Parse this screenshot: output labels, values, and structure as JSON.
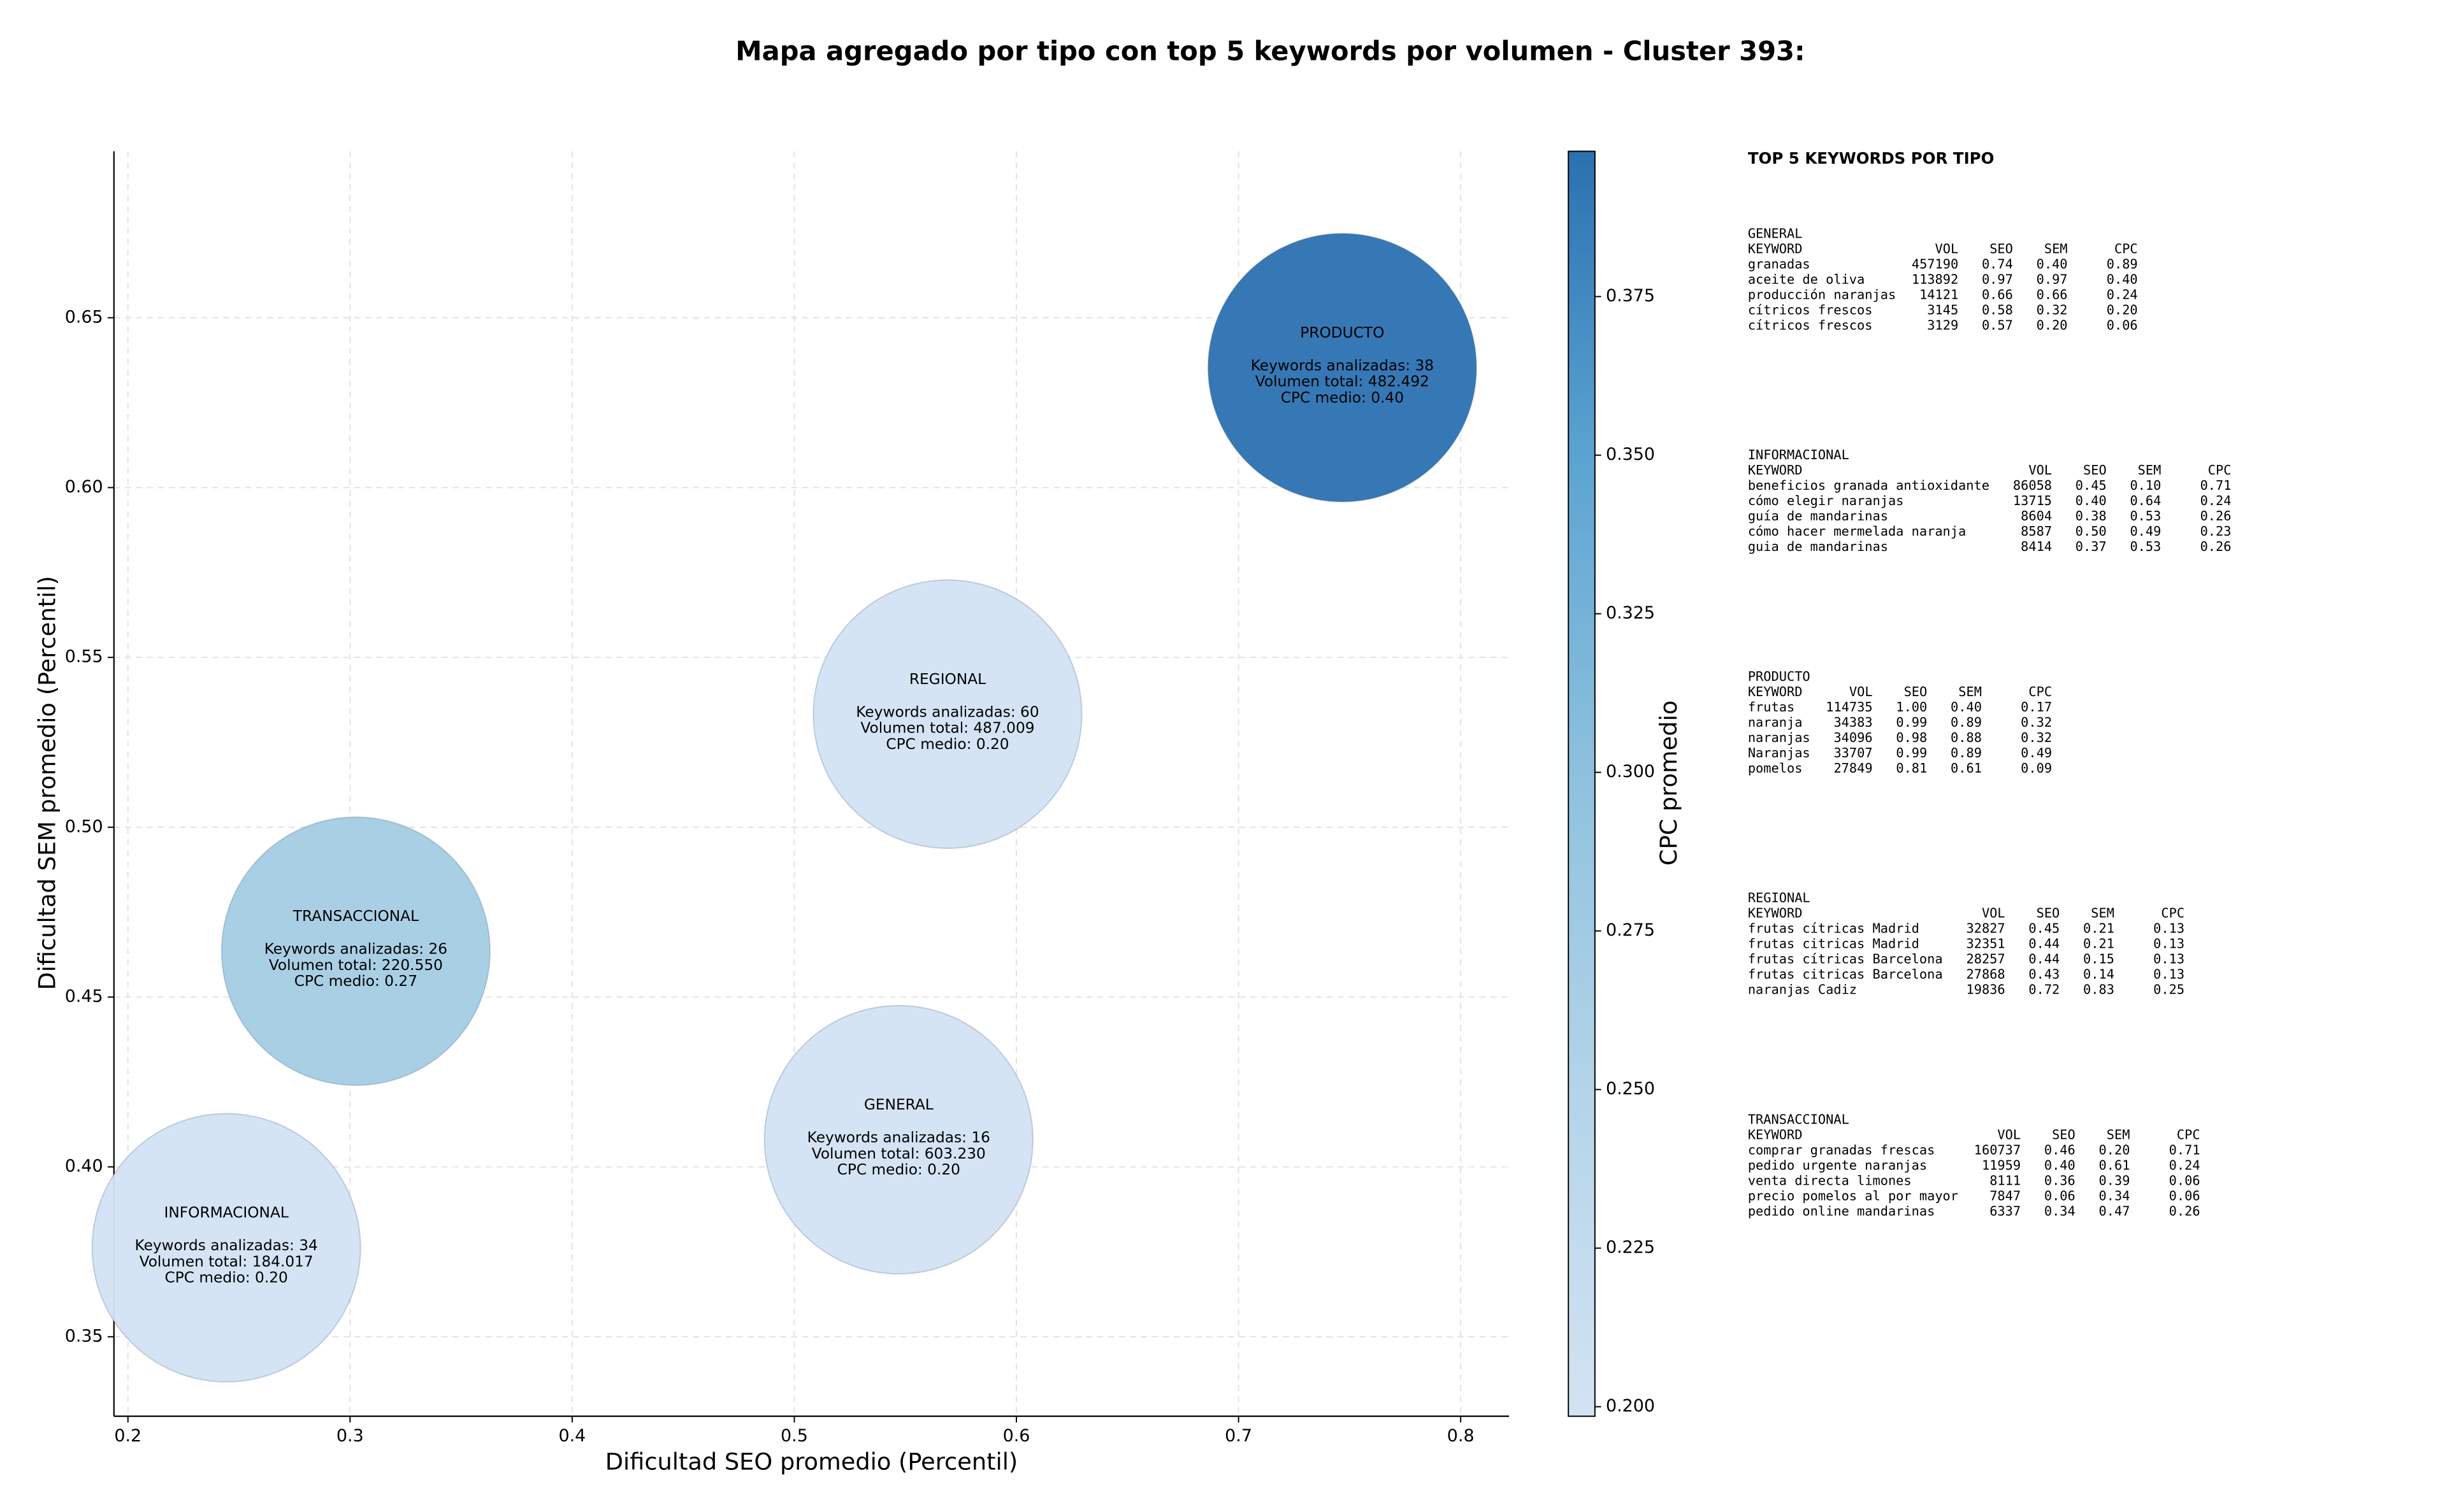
{
  "chart_data": {
    "type": "bubble",
    "title": "Mapa agregado por tipo con top 5 keywords por volumen - Cluster 393:",
    "x_label": "Dificultad SEO promedio (Percentil)",
    "y_label": "Dificultad SEM promedio (Percentil)",
    "xlim": [
      0.1937,
      0.8218
    ],
    "ylim": [
      0.3266,
      0.699
    ],
    "xticks": [
      0.2,
      0.3,
      0.4,
      0.5,
      0.6,
      0.7,
      0.8
    ],
    "yticks": [
      0.35,
      {
        "value": 0.4,
        "label": "0.40"
      },
      0.45,
      {
        "value": 0.5,
        "label": "0.50"
      },
      0.55,
      {
        "value": 0.6,
        "label": "0.60"
      },
      0.65
    ],
    "grid": true,
    "colorbar": {
      "label": "CPC promedio",
      "lim": [
        0.1985,
        0.3979
      ],
      "ticks": [
        {
          "value": 0.2,
          "label": "0.200"
        },
        {
          "value": 0.225,
          "label": "0.225"
        },
        {
          "value": 0.25,
          "label": "0.250"
        },
        {
          "value": 0.275,
          "label": "0.275"
        },
        {
          "value": 0.3,
          "label": "0.300"
        },
        {
          "value": 0.325,
          "label": "0.325"
        },
        {
          "value": 0.35,
          "label": "0.350"
        },
        {
          "value": 0.375,
          "label": "0.375"
        }
      ],
      "colors": [
        "#d3e3f3",
        "#b5d4e9",
        "#8fc2de",
        "#5da5d2",
        "#2b71b1"
      ]
    },
    "points": [
      {
        "name": "PRODUCTO",
        "x": 0.7467,
        "y": 0.6353,
        "cpc": 0.398,
        "labels": [
          "Keywords analizadas: 38",
          "Volumen total: 482.492",
          "CPC medio: 0.40"
        ]
      },
      {
        "name": "REGIONAL",
        "x": 0.569,
        "y": 0.5333,
        "cpc": 0.2,
        "labels": [
          "Keywords analizadas: 60",
          "Volumen total: 487.009",
          "CPC medio: 0.20"
        ]
      },
      {
        "name": "TRANSACCIONAL",
        "x": 0.3026,
        "y": 0.4635,
        "cpc": 0.27,
        "labels": [
          "Keywords analizadas: 26",
          "Volumen total: 220.550",
          "CPC medio: 0.27"
        ]
      },
      {
        "name": "GENERAL",
        "x": 0.547,
        "y": 0.408,
        "cpc": 0.199,
        "labels": [
          "Keywords analizadas: 16",
          "Volumen total: 603.230",
          "CPC medio: 0.20"
        ]
      },
      {
        "name": "INFORMACIONAL",
        "x": 0.2443,
        "y": 0.3762,
        "cpc": 0.2,
        "labels": [
          "Keywords analizadas: 34",
          "Volumen total: 184.017",
          "CPC medio: 0.20"
        ]
      }
    ]
  },
  "keyword_tables": {
    "title": "TOP 5 KEYWORDS POR TIPO",
    "header": [
      "KEYWORD",
      "VOL",
      "SEO",
      "SEM",
      "CPC"
    ],
    "sections": [
      {
        "name": "GENERAL",
        "rows": [
          [
            "granadas",
            "457190",
            "0.74",
            "0.40",
            "0.89"
          ],
          [
            "aceite de oliva",
            "113892",
            "0.97",
            "0.97",
            "0.40"
          ],
          [
            "producción naranjas",
            "14121",
            "0.66",
            "0.66",
            "0.24"
          ],
          [
            "cítricos frescos",
            "3145",
            "0.58",
            "0.32",
            "0.20"
          ],
          [
            "cítricos frescos",
            "3129",
            "0.57",
            "0.20",
            "0.06"
          ]
        ]
      },
      {
        "name": "INFORMACIONAL",
        "rows": [
          [
            "beneficios granada antioxidante",
            "86058",
            "0.45",
            "0.10",
            "0.71"
          ],
          [
            "cómo elegir naranjas",
            "13715",
            "0.40",
            "0.64",
            "0.24"
          ],
          [
            "guía de mandarinas",
            "8604",
            "0.38",
            "0.53",
            "0.26"
          ],
          [
            "cómo hacer mermelada naranja",
            "8587",
            "0.50",
            "0.49",
            "0.23"
          ],
          [
            "guia de mandarinas",
            "8414",
            "0.37",
            "0.53",
            "0.26"
          ]
        ]
      },
      {
        "name": "PRODUCTO",
        "rows": [
          [
            "frutas",
            "114735",
            "1.00",
            "0.40",
            "0.17"
          ],
          [
            "naranja",
            "34383",
            "0.99",
            "0.89",
            "0.32"
          ],
          [
            "naranjas",
            "34096",
            "0.98",
            "0.88",
            "0.32"
          ],
          [
            "Naranjas",
            "33707",
            "0.99",
            "0.89",
            "0.49"
          ],
          [
            "pomelos",
            "27849",
            "0.81",
            "0.61",
            "0.09"
          ]
        ]
      },
      {
        "name": "REGIONAL",
        "rows": [
          [
            "frutas cítricas Madrid",
            "32827",
            "0.45",
            "0.21",
            "0.13"
          ],
          [
            "frutas citricas Madrid",
            "32351",
            "0.44",
            "0.21",
            "0.13"
          ],
          [
            "frutas cítricas Barcelona",
            "28257",
            "0.44",
            "0.15",
            "0.13"
          ],
          [
            "frutas citricas Barcelona",
            "27868",
            "0.43",
            "0.14",
            "0.13"
          ],
          [
            "naranjas Cadiz",
            "19836",
            "0.72",
            "0.83",
            "0.25"
          ]
        ]
      },
      {
        "name": "TRANSACCIONAL",
        "rows": [
          [
            "comprar granadas frescas",
            "160737",
            "0.46",
            "0.20",
            "0.71"
          ],
          [
            "pedido urgente naranjas",
            "11959",
            "0.40",
            "0.61",
            "0.24"
          ],
          [
            "venta directa limones",
            "8111",
            "0.36",
            "0.39",
            "0.06"
          ],
          [
            "precio pomelos al por mayor",
            "7847",
            "0.06",
            "0.34",
            "0.06"
          ],
          [
            "pedido online mandarinas",
            "6337",
            "0.34",
            "0.47",
            "0.26"
          ]
        ]
      }
    ]
  }
}
